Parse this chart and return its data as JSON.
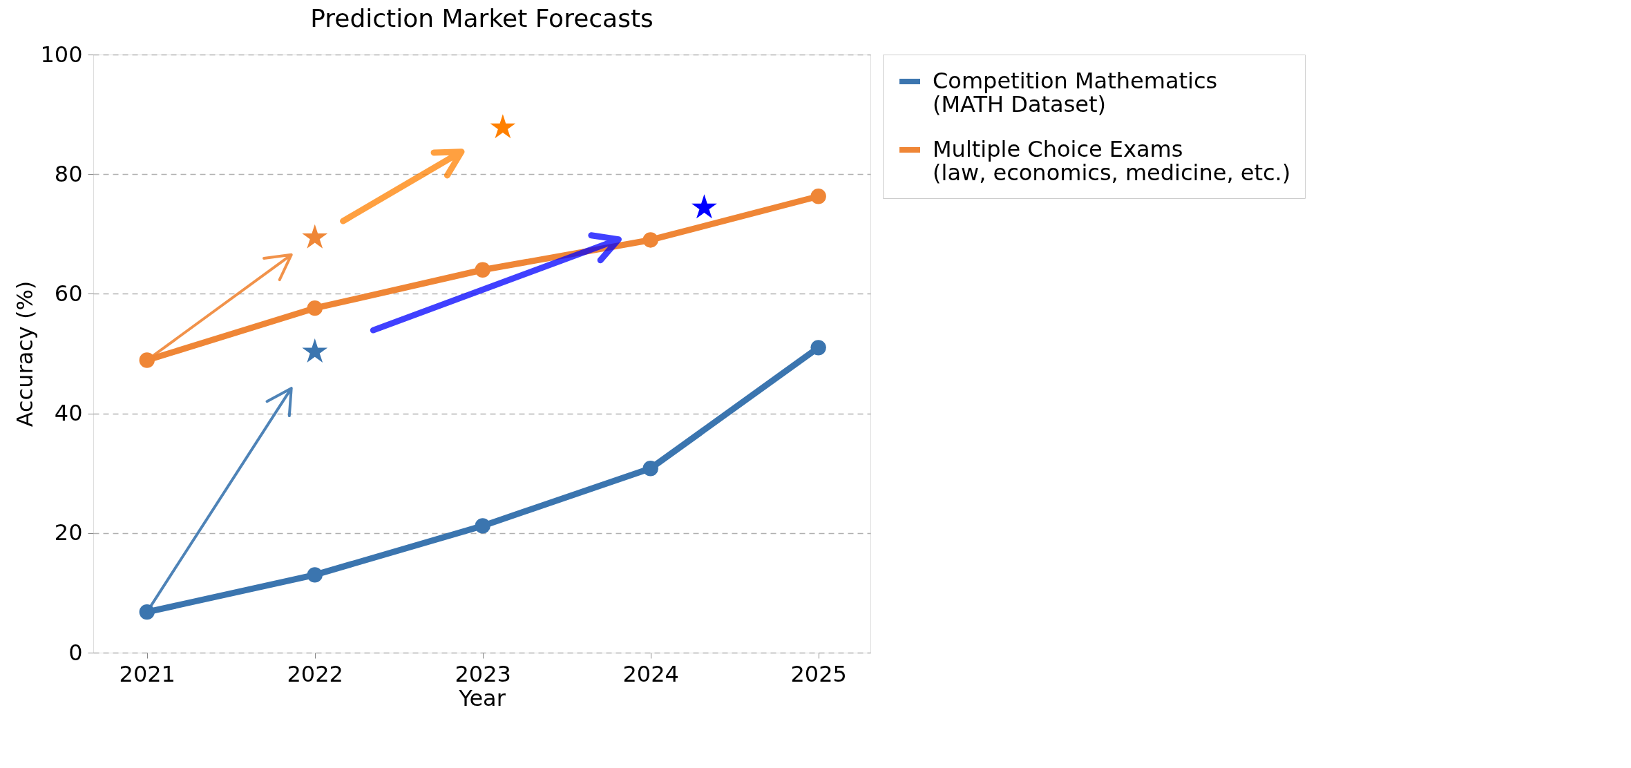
{
  "chart_data": {
    "type": "line",
    "title": "Prediction Market Forecasts",
    "xlabel": "Year",
    "ylabel": "Accuracy (%)",
    "x": [
      2021,
      2022,
      2023,
      2024,
      2025
    ],
    "series": [
      {
        "name": "Competition Mathematics\n(MATH Dataset)",
        "color": "#3b75af",
        "values": [
          6.8,
          13.0,
          21.2,
          30.8,
          51.0
        ]
      },
      {
        "name": "Multiple Choice Exams\n(law, economics, medicine, etc.)",
        "color": "#ef8636",
        "values": [
          48.9,
          57.6,
          64.0,
          69.0,
          76.3
        ]
      },
      {
        "type": "scatter",
        "marker": "star",
        "x": [
          2022,
          2024.32
        ],
        "values": [
          50.3,
          74.4
        ],
        "colors": [
          "#3b75af",
          "#0000ff"
        ]
      },
      {
        "type": "scatter",
        "marker": "star",
        "x": [
          2022,
          2023.12
        ],
        "values": [
          69.4,
          87.8
        ],
        "colors": [
          "#ef8636",
          "#ff8000"
        ]
      }
    ],
    "xlim": [
      2020.68,
      2025.31
    ],
    "ylim": [
      0,
      100
    ],
    "xticks": [
      2021,
      2022,
      2023,
      2024,
      2025
    ],
    "yticks": [
      0,
      20,
      40,
      60,
      80,
      100
    ],
    "grid": "y",
    "legend": "right",
    "marker": "circle",
    "line_style": "solid"
  }
}
